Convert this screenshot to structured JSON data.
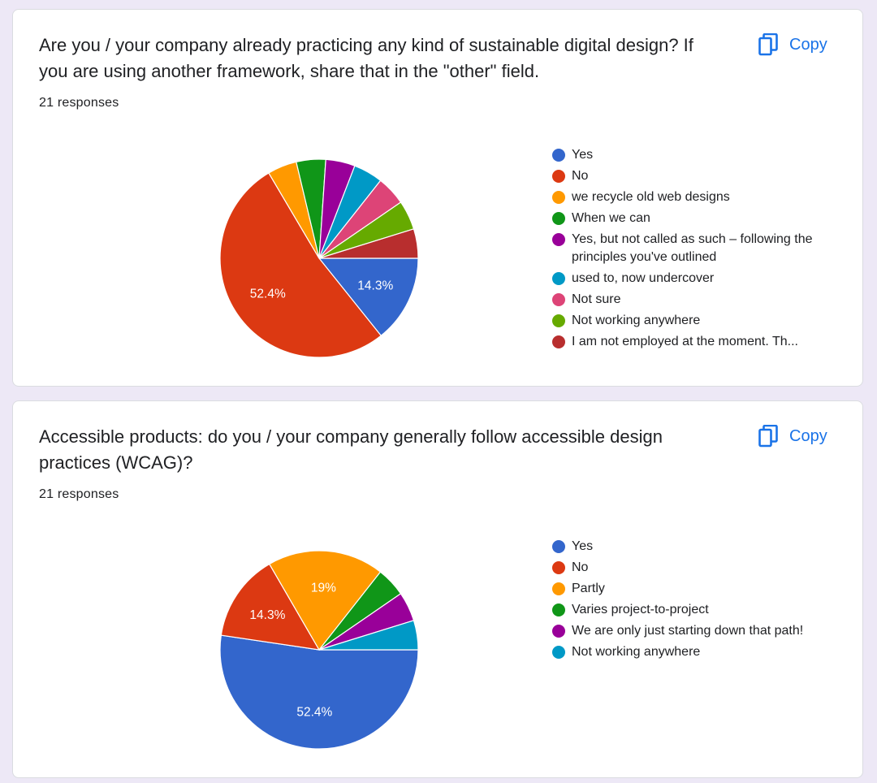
{
  "cards": [
    {
      "question": "Are you / your company already practicing any kind of sustainable digital design? If you are using another framework, share that in the \"other\" field.",
      "responses_label": "21 responses",
      "copy_label": "Copy",
      "copy_icon": "copy-icon"
    },
    {
      "question": "Accessible products: do you / your company generally follow accessible design practices (WCAG)?",
      "responses_label": "21 responses",
      "copy_label": "Copy",
      "copy_icon": "copy-icon"
    }
  ],
  "chart_data": [
    {
      "type": "pie",
      "title": "",
      "categories": [
        "Yes",
        "No",
        "we recycle old web designs",
        "When we can",
        "Yes, but not called as such – following the principles you've outlined",
        "used to, now undercover",
        "Not sure",
        "Not working anywhere",
        "I am not employed at the moment. Th..."
      ],
      "values": [
        14.3,
        52.4,
        4.8,
        4.8,
        4.8,
        4.8,
        4.8,
        4.8,
        4.8
      ],
      "data_labels": [
        "14.3%",
        "52.4%",
        "",
        "",
        "",
        "",
        "",
        "",
        ""
      ],
      "colors": [
        "#3366cc",
        "#dc3912",
        "#ff9900",
        "#109618",
        "#990099",
        "#0099c6",
        "#dd4477",
        "#66aa00",
        "#b82e2e"
      ],
      "legend": "right"
    },
    {
      "type": "pie",
      "title": "",
      "categories": [
        "Yes",
        "No",
        "Partly",
        "Varies project-to-project",
        "We are only just starting down that path!",
        "Not working anywhere"
      ],
      "values": [
        52.4,
        14.3,
        19,
        4.8,
        4.8,
        4.8
      ],
      "data_labels": [
        "52.4%",
        "14.3%",
        "19%",
        "",
        "",
        ""
      ],
      "colors": [
        "#3366cc",
        "#dc3912",
        "#ff9900",
        "#109618",
        "#990099",
        "#0099c6"
      ],
      "legend": "right"
    }
  ]
}
